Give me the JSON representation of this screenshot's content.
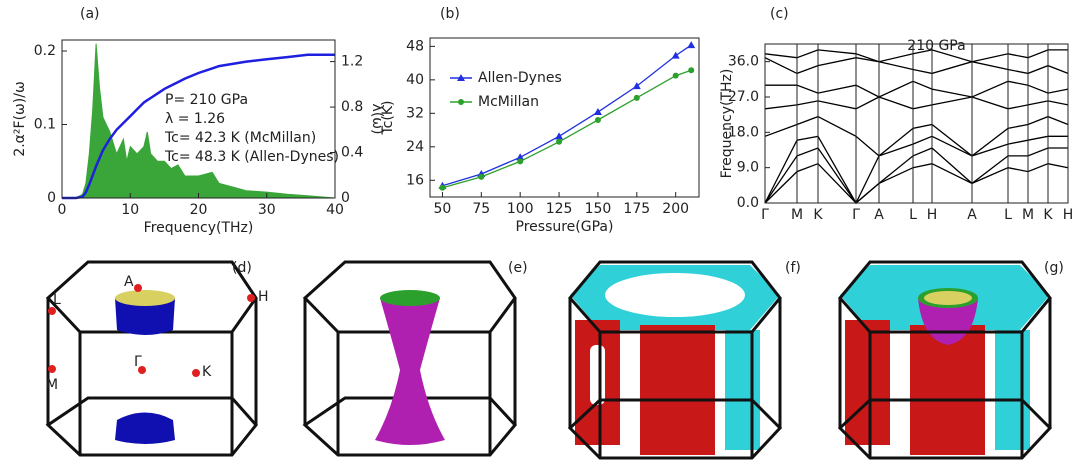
{
  "chart_data": [
    {
      "type": "line",
      "label": "(a)",
      "xlabel": "Frequency(THz)",
      "ylabel": "2.α²F(ω)/ω",
      "y2label": "λ(ω)",
      "x": [
        0,
        2,
        3,
        3.5,
        4,
        4.5,
        5,
        5.5,
        6,
        7,
        8,
        9,
        9.5,
        10,
        11,
        12,
        12.5,
        13,
        14,
        15,
        16,
        17,
        18,
        20,
        22,
        23,
        25,
        27,
        30,
        33,
        36,
        40
      ],
      "series": [
        {
          "style": "area",
          "color": "#3aa63a",
          "values": [
            0,
            0,
            0.005,
            0.02,
            0.06,
            0.12,
            0.21,
            0.15,
            0.11,
            0.09,
            0.06,
            0.08,
            0.05,
            0.07,
            0.06,
            0.07,
            0.09,
            0.06,
            0.05,
            0.05,
            0.04,
            0.045,
            0.03,
            0.03,
            0.035,
            0.02,
            0.015,
            0.01,
            0.008,
            0.005,
            0.003,
            0
          ]
        },
        {
          "style": "line",
          "axis": "y2",
          "color": "#1f1fe0",
          "values": [
            0,
            0,
            0.01,
            0.05,
            0.12,
            0.2,
            0.28,
            0.35,
            0.42,
            0.52,
            0.6,
            0.66,
            0.69,
            0.72,
            0.78,
            0.84,
            0.86,
            0.88,
            0.92,
            0.96,
            0.99,
            1.02,
            1.05,
            1.1,
            1.14,
            1.16,
            1.18,
            1.2,
            1.22,
            1.24,
            1.26,
            1.26
          ]
        }
      ],
      "annotations": [
        "P= 210 GPa",
        "λ = 1.26",
        "Tc= 42.3 K (McMillan)",
        "Tc= 48.3 K (Allen-Dynes)"
      ],
      "xlim": [
        0,
        40
      ],
      "xticks": [
        0,
        10,
        20,
        30,
        40
      ],
      "ylim": [
        0,
        0.215
      ],
      "yticks": [
        0,
        0.1,
        0.2
      ],
      "y2lim": [
        0,
        1.39
      ],
      "y2ticks": [
        0,
        0.4,
        0.8,
        1.2
      ]
    },
    {
      "type": "line",
      "label": "(b)",
      "xlabel": "Pressure(GPa)",
      "ylabel": "Tc(K)",
      "x": [
        50,
        75,
        100,
        125,
        150,
        175,
        200,
        210
      ],
      "series": [
        {
          "name": "Allen-Dynes",
          "color": "#2030e0",
          "marker": "triangle",
          "values": [
            14.7,
            17.5,
            21.5,
            26.5,
            32.3,
            38.5,
            45.8,
            48.3
          ]
        },
        {
          "name": "McMillan",
          "color": "#2ca02c",
          "marker": "circle",
          "values": [
            14.2,
            16.8,
            20.5,
            25.2,
            30.4,
            35.7,
            41.0,
            42.3
          ]
        }
      ],
      "legend": "upper left",
      "xlim": [
        42,
        215
      ],
      "xticks": [
        50,
        75,
        100,
        125,
        150,
        175,
        200
      ],
      "ylim": [
        12,
        50
      ],
      "yticks": [
        16,
        24,
        32,
        40,
        48
      ]
    },
    {
      "type": "line",
      "label": "(c)",
      "title": "210 GPa",
      "ylabel": "Frequency(THz)",
      "x": [
        0,
        32,
        53,
        91,
        114,
        148,
        167,
        207,
        243,
        263,
        283,
        303
      ],
      "series": [
        {
          "color": "#000000",
          "values": [
            0,
            8,
            10,
            0,
            5,
            9,
            10,
            5,
            9,
            8,
            10,
            9
          ]
        },
        {
          "color": "#000000",
          "values": [
            0,
            12,
            14,
            0,
            5,
            12,
            14,
            5,
            12,
            12,
            14,
            14
          ]
        },
        {
          "color": "#000000",
          "values": [
            0,
            16,
            17,
            0,
            12,
            15,
            17,
            12,
            15,
            16,
            17,
            17
          ]
        },
        {
          "color": "#000000",
          "values": [
            17,
            20,
            22,
            17,
            12,
            19,
            20,
            12,
            19,
            20,
            22,
            20
          ]
        },
        {
          "color": "#000000",
          "values": [
            24,
            25,
            26,
            24,
            27,
            24,
            25,
            27,
            24,
            25,
            26,
            25
          ]
        },
        {
          "color": "#000000",
          "values": [
            30,
            30,
            28,
            30,
            27,
            31,
            29,
            27,
            31,
            30,
            28,
            29
          ]
        },
        {
          "color": "#000000",
          "values": [
            37,
            33,
            35,
            37,
            36,
            34,
            33,
            36,
            34,
            33,
            35,
            33
          ]
        },
        {
          "color": "#000000",
          "values": [
            38,
            37,
            39,
            38,
            36,
            38,
            39,
            36,
            38,
            37,
            39,
            39
          ]
        }
      ],
      "xgrid": true,
      "xlim": [
        0,
        303
      ],
      "xticks": [
        {
          "value": 0,
          "label": "Γ"
        },
        {
          "value": 32,
          "label": "M"
        },
        {
          "value": 53,
          "label": "K"
        },
        {
          "value": 91,
          "label": "Γ"
        },
        {
          "value": 114,
          "label": "A"
        },
        {
          "value": 148,
          "label": "L"
        },
        {
          "value": 167,
          "label": "H"
        },
        {
          "value": 207,
          "label": "A"
        },
        {
          "value": 243,
          "label": "L"
        },
        {
          "value": 263,
          "label": "M"
        },
        {
          "value": 283,
          "label": "K"
        },
        {
          "value": 303,
          "label": "H"
        }
      ],
      "ylim": [
        0,
        40.5
      ],
      "yticks": [
        {
          "value": 0,
          "label": "0.0"
        },
        {
          "value": 9,
          "label": "9.0"
        },
        {
          "value": 18,
          "label": "18.0"
        },
        {
          "value": 27,
          "label": "27.0"
        },
        {
          "value": 36,
          "label": "36.0"
        }
      ]
    }
  ],
  "fermi_surfaces": [
    {
      "label": "(d)",
      "points": [
        "A",
        "L",
        "H",
        "Γ",
        "M",
        "K"
      ]
    },
    {
      "label": "(e)"
    },
    {
      "label": "(f)"
    },
    {
      "label": "(g)"
    }
  ]
}
